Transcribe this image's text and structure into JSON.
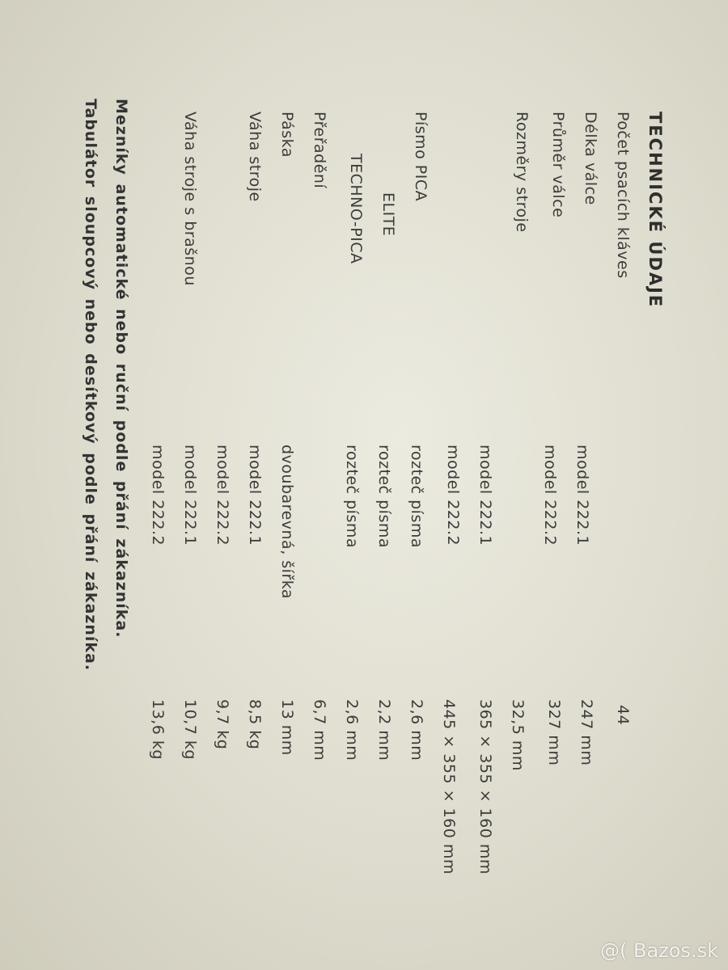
{
  "title": "TECHNICKÉ ÚDAJE",
  "labels": {
    "keys": "Počet psacích kláves",
    "roller_length": "Délka válce",
    "roller_diameter": "Průměr válce",
    "dimensions": "Rozměry stroje",
    "font_pica": "Písmo PICA",
    "font_elite": "ELITE",
    "font_techno": "TECHNO-PICA",
    "shift": "Přeřadění",
    "ribbon": "Páska",
    "weight": "Váha stroje",
    "weight_case": "Váha stroje s brašnou"
  },
  "middle": {
    "roller_length_m1": "model 222.1",
    "roller_length_m2": "model 222.2",
    "dimensions_m1": "model 222.1",
    "dimensions_m2": "model 222.2",
    "pitch_pica": "rozteč písma",
    "pitch_elite": "rozteč písma",
    "pitch_techno": "rozteč písma",
    "ribbon": "dvoubarevná, šířka",
    "weight_m1": "model 222.1",
    "weight_m2": "model 222.2",
    "weight_case_m1": "model 222.1",
    "weight_case_m2": "model 222.2"
  },
  "values": {
    "keys": "44",
    "roller_length_m1": "247 mm",
    "roller_length_m2": "327 mm",
    "roller_diameter": "32,5 mm",
    "dimensions_m1": "365 × 355 × 160  mm",
    "dimensions_m2": "445 × 355 × 160  mm",
    "pitch_pica": "2,6 mm",
    "pitch_elite": "2,2 mm",
    "pitch_techno": "2,6 mm",
    "shift": "6,7 mm",
    "ribbon": "13 mm",
    "weight_m1": "8,5 kg",
    "weight_m2": "9,7 kg",
    "weight_case_m1": "10,7 kg",
    "weight_case_m2": "13,6 kg"
  },
  "footer": {
    "stops": "Mezníky automatické nebo ruční podle přání zákazníka.",
    "tabulator": "Tabulátor sloupcový nebo desítkový podle přání zákazníka."
  },
  "watermark": "@( Bazos.sk"
}
